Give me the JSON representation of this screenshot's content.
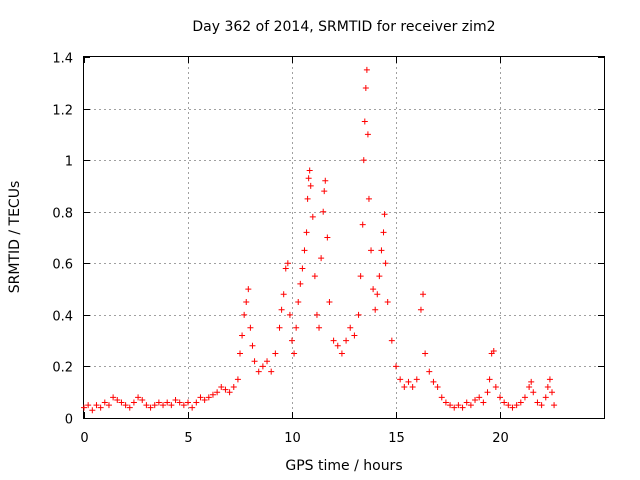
{
  "chart_data": {
    "type": "scatter",
    "title": "Day 362 of 2014, SRMTID for receiver zim2",
    "xlabel": "GPS time / hours",
    "ylabel": "SRMTID / TECUs",
    "xlim": [
      0,
      25
    ],
    "ylim": [
      0,
      1.4
    ],
    "xticks": [
      0,
      5,
      10,
      15,
      20
    ],
    "xtick_labels": [
      "0",
      "5",
      "10",
      "15",
      "20"
    ],
    "yticks": [
      0,
      0.2,
      0.4,
      0.6,
      0.8,
      1.0,
      1.2,
      1.4
    ],
    "ytick_labels": [
      "0",
      "0.2",
      "0.4",
      "0.6",
      "0.8",
      "1",
      "1.2",
      "1.4"
    ],
    "grid": true,
    "marker": "+",
    "color": "#ff0000",
    "series": [
      {
        "name": "zim2",
        "points": [
          [
            0.0,
            0.04
          ],
          [
            0.2,
            0.05
          ],
          [
            0.4,
            0.03
          ],
          [
            0.6,
            0.05
          ],
          [
            0.8,
            0.04
          ],
          [
            1.0,
            0.06
          ],
          [
            1.2,
            0.05
          ],
          [
            1.4,
            0.08
          ],
          [
            1.6,
            0.07
          ],
          [
            1.8,
            0.06
          ],
          [
            2.0,
            0.05
          ],
          [
            2.2,
            0.04
          ],
          [
            2.4,
            0.06
          ],
          [
            2.6,
            0.08
          ],
          [
            2.8,
            0.07
          ],
          [
            3.0,
            0.05
          ],
          [
            3.2,
            0.04
          ],
          [
            3.4,
            0.05
          ],
          [
            3.6,
            0.06
          ],
          [
            3.8,
            0.05
          ],
          [
            4.0,
            0.06
          ],
          [
            4.2,
            0.05
          ],
          [
            4.4,
            0.07
          ],
          [
            4.6,
            0.06
          ],
          [
            4.8,
            0.05
          ],
          [
            5.0,
            0.06
          ],
          [
            5.2,
            0.04
          ],
          [
            5.4,
            0.06
          ],
          [
            5.6,
            0.08
          ],
          [
            5.8,
            0.07
          ],
          [
            6.0,
            0.08
          ],
          [
            6.2,
            0.09
          ],
          [
            6.4,
            0.1
          ],
          [
            6.6,
            0.12
          ],
          [
            6.8,
            0.11
          ],
          [
            7.0,
            0.1
          ],
          [
            7.2,
            0.12
          ],
          [
            7.4,
            0.15
          ],
          [
            7.5,
            0.25
          ],
          [
            7.6,
            0.32
          ],
          [
            7.7,
            0.4
          ],
          [
            7.8,
            0.45
          ],
          [
            7.9,
            0.5
          ],
          [
            8.0,
            0.35
          ],
          [
            8.1,
            0.28
          ],
          [
            8.2,
            0.22
          ],
          [
            8.4,
            0.18
          ],
          [
            8.6,
            0.2
          ],
          [
            8.8,
            0.22
          ],
          [
            9.0,
            0.18
          ],
          [
            9.2,
            0.25
          ],
          [
            9.4,
            0.35
          ],
          [
            9.5,
            0.42
          ],
          [
            9.6,
            0.48
          ],
          [
            9.7,
            0.58
          ],
          [
            9.8,
            0.6
          ],
          [
            9.9,
            0.4
          ],
          [
            10.0,
            0.3
          ],
          [
            10.1,
            0.25
          ],
          [
            10.2,
            0.35
          ],
          [
            10.3,
            0.45
          ],
          [
            10.4,
            0.52
          ],
          [
            10.5,
            0.58
          ],
          [
            10.6,
            0.65
          ],
          [
            10.7,
            0.72
          ],
          [
            10.75,
            0.85
          ],
          [
            10.8,
            0.93
          ],
          [
            10.85,
            0.96
          ],
          [
            10.9,
            0.9
          ],
          [
            11.0,
            0.78
          ],
          [
            11.1,
            0.55
          ],
          [
            11.2,
            0.4
          ],
          [
            11.3,
            0.35
          ],
          [
            11.4,
            0.62
          ],
          [
            11.5,
            0.8
          ],
          [
            11.55,
            0.88
          ],
          [
            11.6,
            0.92
          ],
          [
            11.7,
            0.7
          ],
          [
            11.8,
            0.45
          ],
          [
            12.0,
            0.3
          ],
          [
            12.2,
            0.28
          ],
          [
            12.4,
            0.25
          ],
          [
            12.6,
            0.3
          ],
          [
            12.8,
            0.35
          ],
          [
            13.0,
            0.32
          ],
          [
            13.2,
            0.4
          ],
          [
            13.3,
            0.55
          ],
          [
            13.4,
            0.75
          ],
          [
            13.45,
            1.0
          ],
          [
            13.5,
            1.15
          ],
          [
            13.55,
            1.28
          ],
          [
            13.6,
            1.35
          ],
          [
            13.65,
            1.1
          ],
          [
            13.7,
            0.85
          ],
          [
            13.8,
            0.65
          ],
          [
            13.9,
            0.5
          ],
          [
            14.0,
            0.42
          ],
          [
            14.1,
            0.48
          ],
          [
            14.2,
            0.55
          ],
          [
            14.3,
            0.65
          ],
          [
            14.4,
            0.72
          ],
          [
            14.45,
            0.79
          ],
          [
            14.5,
            0.6
          ],
          [
            14.6,
            0.45
          ],
          [
            14.8,
            0.3
          ],
          [
            15.0,
            0.2
          ],
          [
            15.2,
            0.15
          ],
          [
            15.4,
            0.12
          ],
          [
            15.6,
            0.14
          ],
          [
            15.8,
            0.12
          ],
          [
            16.0,
            0.15
          ],
          [
            16.2,
            0.42
          ],
          [
            16.3,
            0.48
          ],
          [
            16.4,
            0.25
          ],
          [
            16.6,
            0.18
          ],
          [
            16.8,
            0.14
          ],
          [
            17.0,
            0.12
          ],
          [
            17.2,
            0.08
          ],
          [
            17.4,
            0.06
          ],
          [
            17.6,
            0.05
          ],
          [
            17.8,
            0.04
          ],
          [
            18.0,
            0.05
          ],
          [
            18.2,
            0.04
          ],
          [
            18.4,
            0.06
          ],
          [
            18.6,
            0.05
          ],
          [
            18.8,
            0.07
          ],
          [
            19.0,
            0.08
          ],
          [
            19.2,
            0.06
          ],
          [
            19.4,
            0.1
          ],
          [
            19.5,
            0.15
          ],
          [
            19.6,
            0.25
          ],
          [
            19.7,
            0.26
          ],
          [
            19.8,
            0.12
          ],
          [
            20.0,
            0.08
          ],
          [
            20.2,
            0.06
          ],
          [
            20.4,
            0.05
          ],
          [
            20.6,
            0.04
          ],
          [
            20.8,
            0.05
          ],
          [
            21.0,
            0.06
          ],
          [
            21.2,
            0.08
          ],
          [
            21.4,
            0.12
          ],
          [
            21.5,
            0.14
          ],
          [
            21.6,
            0.1
          ],
          [
            21.8,
            0.06
          ],
          [
            22.0,
            0.05
          ],
          [
            22.2,
            0.08
          ],
          [
            22.3,
            0.12
          ],
          [
            22.4,
            0.15
          ],
          [
            22.5,
            0.1
          ],
          [
            22.6,
            0.05
          ]
        ]
      }
    ]
  }
}
